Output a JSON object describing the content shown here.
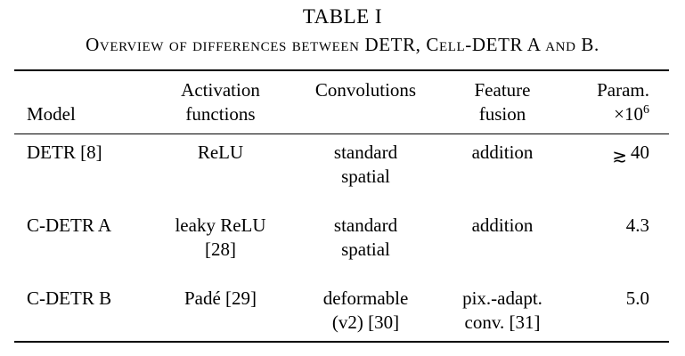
{
  "caption": {
    "number": "TABLE I",
    "title": "Overview of differences between DETR, Cell-DETR A and B."
  },
  "headers": {
    "model": "Model",
    "activation": [
      "Activation",
      "functions"
    ],
    "convolutions": "Convolutions",
    "feature": [
      "Feature",
      "fusion"
    ],
    "param": [
      "Param.",
      "×10",
      "6"
    ]
  },
  "rows": [
    {
      "model": "DETR [8]",
      "activation": [
        "ReLU"
      ],
      "convolutions": [
        "standard",
        "spatial"
      ],
      "feature": [
        "addition"
      ],
      "param": "40",
      "param_prefix": "≳"
    },
    {
      "model": "C-DETR A",
      "activation": [
        "leaky ReLU",
        "[28]"
      ],
      "convolutions": [
        "standard",
        "spatial"
      ],
      "feature": [
        "addition"
      ],
      "param": "4.3"
    },
    {
      "model": "C-DETR B",
      "activation": [
        "Padé [29]"
      ],
      "convolutions": [
        "deformable",
        "(v2) [30]"
      ],
      "feature": [
        "pix.-adapt.",
        "conv. [31]"
      ],
      "param": "5.0"
    }
  ]
}
